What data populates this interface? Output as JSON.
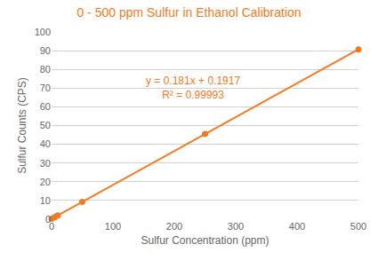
{
  "chart_data": {
    "type": "scatter",
    "title": "0 - 500 ppm Sulfur in Ethanol Calibration",
    "x_label": "Sulfur Concentration (ppm)",
    "y_label": "Sulfur Counts (CPS)",
    "series": [
      {
        "type": "scatter",
        "marker": "circle",
        "color": "#f47920",
        "x": [
          0,
          5,
          10,
          50,
          250,
          500
        ],
        "values": [
          0.1917,
          1.097,
          2.0,
          9.242,
          45.442,
          90.692
        ]
      },
      {
        "type": "line",
        "line_style": "solid",
        "color": "#f47920",
        "x": [
          0,
          500
        ],
        "values": [
          0.1917,
          90.6917
        ]
      }
    ],
    "annotations": [
      {
        "text": "y = 0.181x + 0.1917\nR² = 0.99993",
        "x": 230,
        "y": 78,
        "color": "#f47920"
      }
    ],
    "title_color": "#f47920",
    "axis_label_color": "#666666",
    "tick_color": "#666666",
    "grid_color": "#d0d0d0",
    "xlim": [
      0,
      500
    ],
    "ylim": [
      0,
      100
    ],
    "xticks": [
      0,
      100,
      200,
      300,
      400,
      500
    ],
    "yticks": [
      0,
      10,
      20,
      30,
      40,
      50,
      60,
      70,
      80,
      90,
      100
    ],
    "grid": "y"
  }
}
